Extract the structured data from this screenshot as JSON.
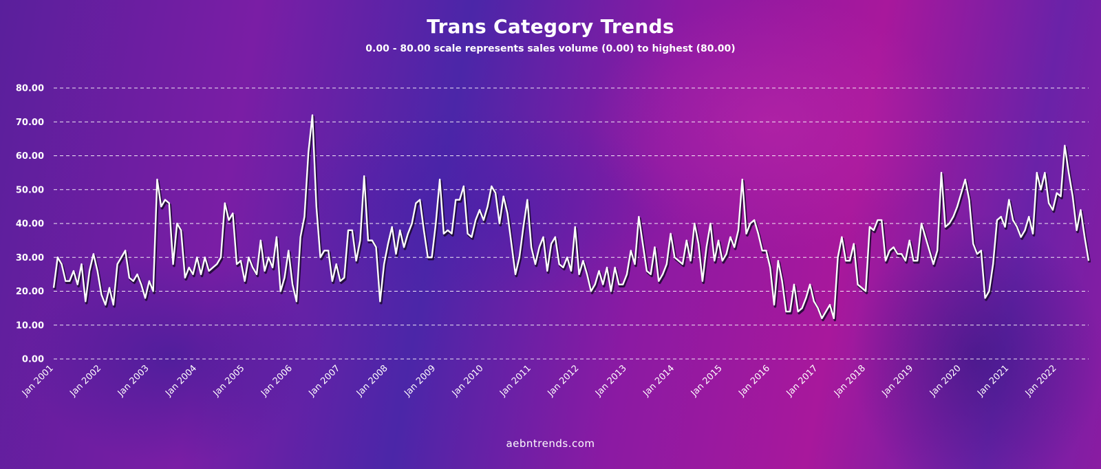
{
  "page": {
    "title": "Trans Category Trends",
    "subtitle": "0.00 - 80.00 scale represents sales volume (0.00) to highest (80.00)",
    "footer": "aebntrends.com"
  },
  "colors": {
    "line": "#ffffff",
    "line_shadow": "#1a0b2e",
    "gridline": "#ffffff",
    "text": "#ffffff"
  },
  "chart_data": {
    "type": "line",
    "title": "Trans Category Trends",
    "subtitle": "0.00 - 80.00 scale represents sales volume (0.00) to highest (80.00)",
    "xlabel": "",
    "ylabel": "",
    "ylim": [
      0,
      80
    ],
    "grid": "horizontal-dashed",
    "yticks": [
      "0.00",
      "10.00",
      "20.00",
      "30.00",
      "40.00",
      "50.00",
      "60.00",
      "70.00",
      "80.00"
    ],
    "xticks": [
      "Jan 2001",
      "Jan 2002",
      "Jan 2003",
      "Jan 2004",
      "Jan 2005",
      "Jan 2006",
      "Jan 2007",
      "Jan 2008",
      "Jan 2009",
      "Jan 2010",
      "Jan 2011",
      "Jan 2012",
      "Jan 2013",
      "Jan 2014",
      "Jan 2015",
      "Jan 2016",
      "Jan 2017",
      "Jan 2018",
      "Jan 2019",
      "Jan 2020",
      "Jan 2021",
      "Jan 2022"
    ],
    "x_start": "Jan 2001",
    "x_interval": "monthly",
    "values": [
      21,
      30,
      28,
      23,
      23,
      26,
      22,
      28,
      17,
      26,
      31,
      26,
      19,
      16,
      21,
      16,
      28,
      30,
      32,
      24,
      23,
      25,
      22,
      18,
      23,
      20,
      53,
      45,
      47,
      46,
      28,
      40,
      38,
      24,
      27,
      25,
      30,
      25,
      30,
      26,
      27,
      28,
      30,
      46,
      41,
      43,
      28,
      29,
      23,
      30,
      27,
      25,
      35,
      26,
      30,
      27,
      36,
      20,
      24,
      32,
      22,
      17,
      36,
      42,
      61,
      72,
      45,
      30,
      32,
      32,
      23,
      28,
      23,
      24,
      38,
      38,
      29,
      35,
      54,
      35,
      35,
      33,
      17,
      28,
      34,
      39,
      31,
      38,
      33,
      37,
      40,
      46,
      47,
      38,
      30,
      30,
      40,
      53,
      37,
      38,
      37,
      47,
      47,
      51,
      37,
      36,
      41,
      44,
      41,
      45,
      51,
      49,
      40,
      48,
      43,
      34,
      25,
      30,
      39,
      47,
      33,
      28,
      33,
      36,
      26,
      34,
      36,
      28,
      27,
      30,
      26,
      39,
      25,
      29,
      25,
      20,
      22,
      26,
      22,
      27,
      20,
      27,
      22,
      22,
      25,
      32,
      28,
      42,
      34,
      26,
      25,
      33,
      23,
      25,
      28,
      37,
      30,
      29,
      28,
      35,
      29,
      40,
      34,
      23,
      33,
      40,
      29,
      35,
      29,
      31,
      36,
      33,
      38,
      53,
      37,
      40,
      41,
      37,
      32,
      32,
      27,
      16,
      29,
      23,
      14,
      14,
      22,
      14,
      15,
      18,
      22,
      17,
      15,
      12,
      14,
      16,
      12,
      30,
      36,
      29,
      29,
      34,
      22,
      21,
      20,
      39,
      38,
      41,
      41,
      29,
      32,
      33,
      31,
      31,
      29,
      35,
      29,
      29,
      40,
      36,
      32,
      28,
      32,
      55,
      39,
      40,
      42,
      45,
      49,
      53,
      47,
      34,
      31,
      32,
      18,
      20,
      28,
      41,
      42,
      39,
      47,
      41,
      39,
      36,
      38,
      42,
      37,
      55,
      50,
      55,
      46,
      44,
      49,
      48,
      63,
      55,
      48,
      38,
      44,
      36,
      29
    ]
  }
}
